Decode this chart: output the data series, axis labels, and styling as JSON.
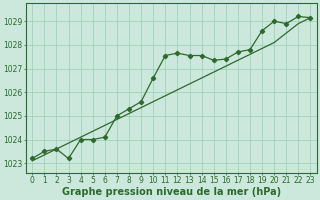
{
  "line1_x": [
    0,
    1,
    2,
    3,
    4,
    5,
    6,
    7,
    8,
    9,
    10,
    11,
    12,
    13,
    14,
    15,
    16,
    17,
    18,
    19,
    20,
    21,
    22,
    23
  ],
  "line1_y": [
    1023.2,
    1023.5,
    1023.6,
    1023.2,
    1024.0,
    1024.0,
    1024.1,
    1025.0,
    1025.3,
    1025.6,
    1026.6,
    1027.55,
    1027.65,
    1027.55,
    1027.55,
    1027.35,
    1027.4,
    1027.7,
    1027.8,
    1028.6,
    1029.0,
    1028.9,
    1029.2,
    1029.15
  ],
  "line2_x": [
    0,
    1,
    2,
    3,
    4,
    5,
    6,
    7,
    8,
    9,
    10,
    11,
    12,
    13,
    14,
    15,
    16,
    17,
    18,
    19,
    20,
    21,
    22,
    23
  ],
  "line2_y": [
    1023.1,
    1023.35,
    1023.6,
    1023.85,
    1024.1,
    1024.35,
    1024.6,
    1024.85,
    1025.1,
    1025.35,
    1025.6,
    1025.85,
    1026.1,
    1026.35,
    1026.6,
    1026.85,
    1027.1,
    1027.35,
    1027.6,
    1027.85,
    1028.1,
    1028.5,
    1028.9,
    1029.15
  ],
  "line_color": "#2d6a2d",
  "bg_color": "#cce8dc",
  "grid_color": "#99ccb8",
  "xlabel": "Graphe pression niveau de la mer (hPa)",
  "ylim": [
    1022.6,
    1029.75
  ],
  "xlim": [
    -0.5,
    23.5
  ],
  "yticks": [
    1023,
    1024,
    1025,
    1026,
    1027,
    1028,
    1029
  ],
  "xticks": [
    0,
    1,
    2,
    3,
    4,
    5,
    6,
    7,
    8,
    9,
    10,
    11,
    12,
    13,
    14,
    15,
    16,
    17,
    18,
    19,
    20,
    21,
    22,
    23
  ],
  "tick_fontsize": 5.5,
  "label_fontsize": 7.0
}
